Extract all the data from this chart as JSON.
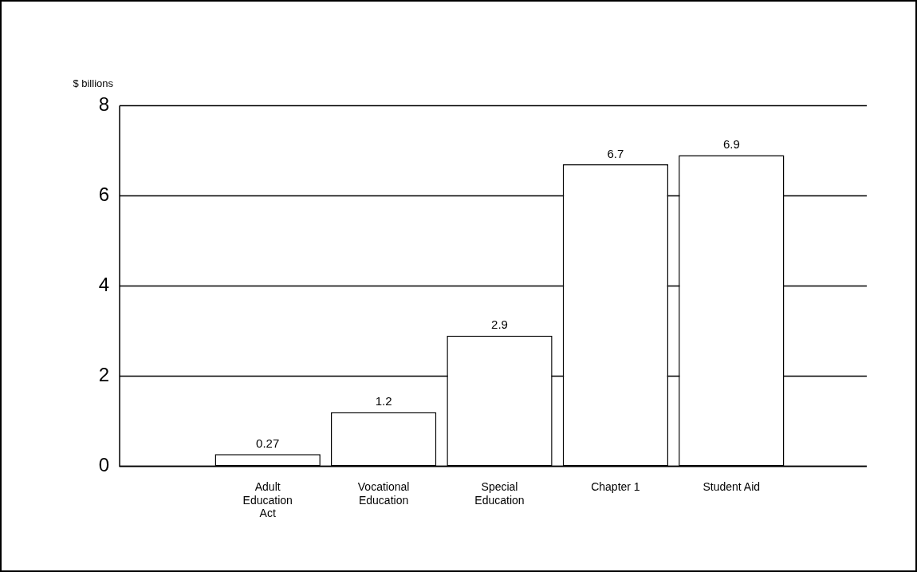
{
  "chart_data": {
    "type": "bar",
    "ylabel": "$ billions",
    "categories": [
      "Adult Education Act",
      "Vocational Education",
      "Special Education",
      "Chapter 1",
      "Student Aid"
    ],
    "values": [
      0.27,
      1.2,
      2.9,
      6.7,
      6.9
    ],
    "color": "#ffffff",
    "ylim": [
      0,
      8
    ],
    "yticks": [
      0,
      2,
      4,
      6,
      8
    ],
    "grid": "y",
    "data_labels": true,
    "legend": false
  }
}
